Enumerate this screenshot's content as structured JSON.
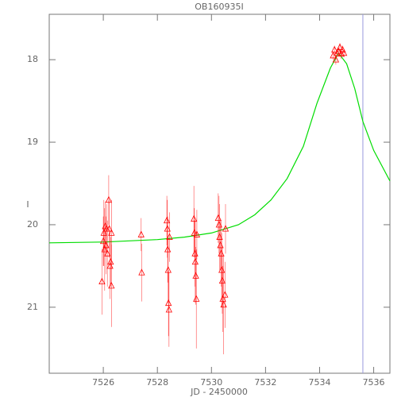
{
  "chart_data": {
    "type": "scatter",
    "title": "OB160935I",
    "xlabel": "JD - 2450000",
    "ylabel": "I",
    "xlim": [
      7524.0,
      7536.6
    ],
    "ylim": [
      21.8,
      17.45
    ],
    "xticks": [
      7526,
      7528,
      7530,
      7532,
      7534,
      7536
    ],
    "yticks": [
      18,
      19,
      20,
      21
    ],
    "axis_color": "#777777",
    "series": [
      {
        "color": "#ff0000",
        "x": [
          7525.95,
          7526.0,
          7526.02,
          7526.05,
          7526.07,
          7526.1,
          7526.12,
          7526.15,
          7526.2,
          7526.22,
          7526.25,
          7526.27,
          7526.3,
          7526.3,
          7527.4,
          7527.42,
          7528.35,
          7528.37,
          7528.38,
          7528.4,
          7528.41,
          7528.43,
          7528.45,
          7529.35,
          7529.37,
          7529.39,
          7529.4,
          7529.42,
          7529.44,
          7529.46,
          7530.25,
          7530.28,
          7530.3,
          7530.33,
          7530.36,
          7530.38,
          7530.4,
          7530.42,
          7530.45,
          7530.5,
          7530.52,
          7534.5,
          7534.55,
          7534.6,
          7534.65,
          7534.7,
          7534.75,
          7534.8,
          7534.85,
          7534.9
        ],
        "values": [
          20.69,
          20.2,
          20.1,
          20.3,
          20.02,
          20.25,
          20.05,
          20.35,
          19.7,
          20.05,
          20.5,
          20.45,
          20.74,
          20.1,
          20.12,
          20.58,
          19.95,
          20.05,
          20.3,
          20.55,
          20.95,
          21.03,
          20.15,
          19.93,
          20.1,
          20.35,
          20.45,
          20.62,
          20.9,
          20.12,
          19.92,
          20.0,
          20.15,
          20.25,
          20.35,
          20.55,
          20.68,
          20.9,
          20.97,
          20.85,
          20.05,
          17.95,
          17.88,
          18.0,
          17.92,
          17.9,
          17.85,
          17.93,
          17.88,
          17.92
        ],
        "errors": [
          0.4,
          0.3,
          0.4,
          0.5,
          0.3,
          0.35,
          0.3,
          0.4,
          0.3,
          0.35,
          0.4,
          0.3,
          0.5,
          0.4,
          0.2,
          0.35,
          0.3,
          0.35,
          0.4,
          0.4,
          0.4,
          0.45,
          0.3,
          0.4,
          0.3,
          0.4,
          0.5,
          0.35,
          0.6,
          0.3,
          0.3,
          0.35,
          0.4,
          0.3,
          0.4,
          0.45,
          0.4,
          0.4,
          0.6,
          0.4,
          0.3,
          0.05,
          0.05,
          0.06,
          0.05,
          0.05,
          0.05,
          0.06,
          0.05,
          0.05
        ]
      }
    ],
    "model": {
      "color": "#00dd00",
      "x": [
        7524.0,
        7526,
        7528,
        7529,
        7530,
        7531,
        7531.6,
        7532.2,
        7532.8,
        7533.4,
        7533.9,
        7534.4,
        7534.7,
        7535.0,
        7535.3,
        7535.6,
        7536.0,
        7536.6
      ],
      "values": [
        20.22,
        20.21,
        20.18,
        20.15,
        20.1,
        20.0,
        19.88,
        19.7,
        19.44,
        19.05,
        18.53,
        18.1,
        17.92,
        18.05,
        18.35,
        18.75,
        19.1,
        19.47
      ]
    },
    "vline": {
      "value": 7535.6,
      "color": "#9999dd"
    }
  }
}
